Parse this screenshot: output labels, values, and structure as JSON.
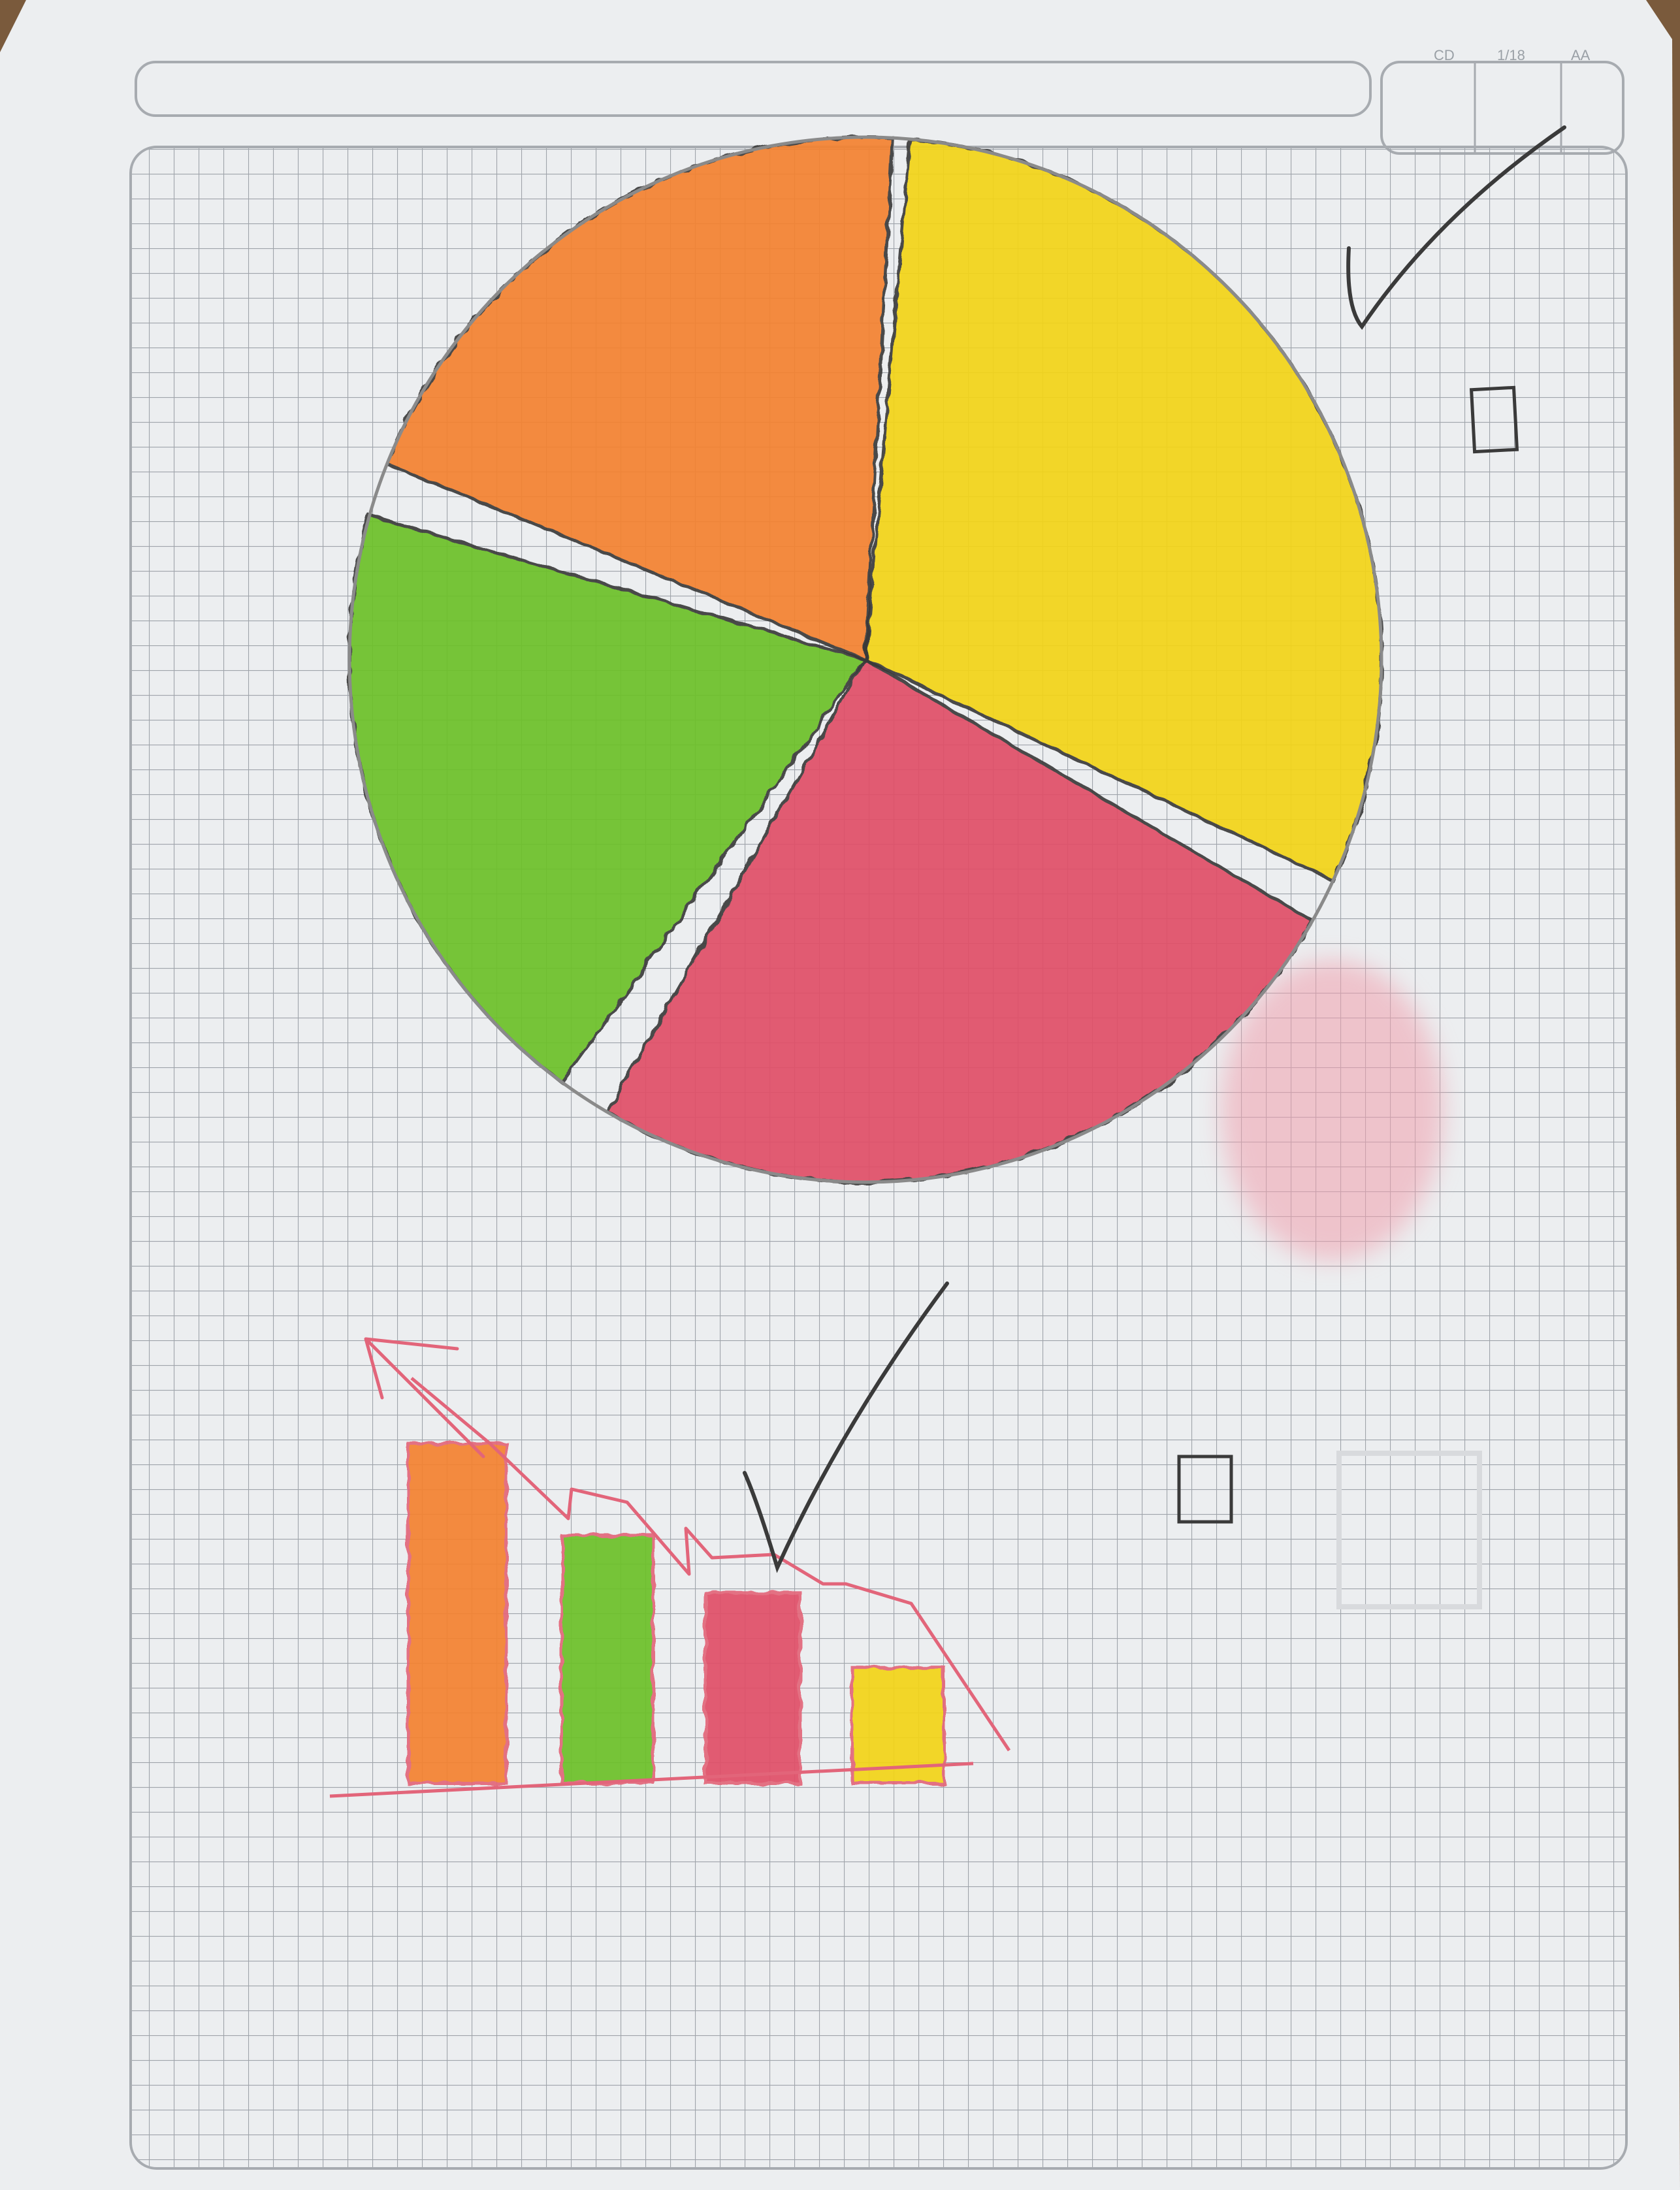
{
  "scene": {
    "colors": {
      "table": "#7a5a3c",
      "paper": "#eceef0",
      "paper_shadow": "#c9ccd0",
      "grid": "#9fa4aa",
      "header_box": "#a7abb0",
      "pencil": "#3a3a3a",
      "crayon_orange": "#f4822f",
      "crayon_yellow": "#f2d416",
      "crayon_green": "#6cc126",
      "crayon_red": "#e05068",
      "crayon_pink_line": "#e2657a",
      "pink_smudge": "#f0a0ae"
    },
    "header": {
      "corner_marks": [
        "CD",
        "1/18",
        "AA"
      ]
    },
    "pie": {
      "slices": [
        {
          "name": "orange",
          "color_key": "crayon_orange",
          "start_deg": 202,
          "end_deg": 273
        },
        {
          "name": "yellow",
          "color_key": "crayon_yellow",
          "start_deg": 275,
          "end_deg": 385
        },
        {
          "name": "red",
          "color_key": "crayon_red",
          "start_deg": 390,
          "end_deg": 480
        },
        {
          "name": "green",
          "color_key": "crayon_green",
          "start_deg": 486,
          "end_deg": 556
        }
      ]
    },
    "bars": {
      "values": [
        100,
        73,
        56,
        34
      ],
      "color_keys": [
        "crayon_orange",
        "crayon_green",
        "crayon_red",
        "crayon_yellow"
      ]
    }
  }
}
